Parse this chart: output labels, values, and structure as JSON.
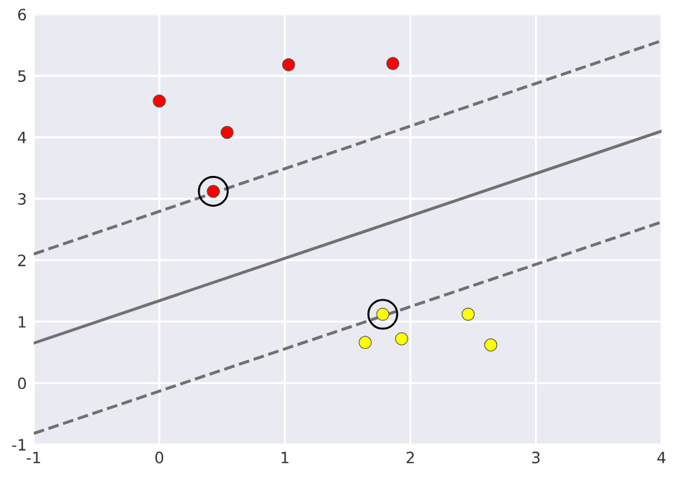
{
  "chart_data": {
    "type": "scatter",
    "xlim": [
      -1,
      4
    ],
    "ylim": [
      -1,
      6
    ],
    "xticks": [
      -1,
      0,
      1,
      2,
      3,
      4
    ],
    "yticks": [
      -1,
      0,
      1,
      2,
      3,
      4,
      5,
      6
    ],
    "grid": true,
    "legend": false,
    "series": [
      {
        "type": "line",
        "color": "#707070",
        "line_style": "solid",
        "marker": "none",
        "x": [
          -1,
          4
        ],
        "values": [
          0.65,
          4.1
        ]
      },
      {
        "type": "line",
        "color": "#707070",
        "line_style": "dashed",
        "marker": "none",
        "x": [
          -1,
          4
        ],
        "values": [
          2.1,
          5.57
        ]
      },
      {
        "type": "line",
        "color": "#707070",
        "line_style": "dashed",
        "marker": "none",
        "x": [
          -1,
          4
        ],
        "values": [
          -0.82,
          2.62
        ]
      },
      {
        "color": "#ff0000",
        "marker": "circle",
        "x": [
          0.0,
          0.54,
          1.03,
          1.86,
          0.43
        ],
        "values": [
          4.59,
          4.08,
          5.18,
          5.2,
          3.12
        ]
      },
      {
        "color": "#ffff00",
        "marker": "circle",
        "x": [
          1.78,
          1.64,
          1.93,
          2.46,
          2.64
        ],
        "values": [
          1.12,
          0.66,
          0.72,
          1.12,
          0.62
        ]
      },
      {
        "type": "bubble",
        "color": "#000000",
        "marker": "circle",
        "x": [
          0.43,
          1.78
        ],
        "values": [
          3.12,
          1.12
        ],
        "sizes": [
          1,
          1
        ]
      }
    ]
  }
}
